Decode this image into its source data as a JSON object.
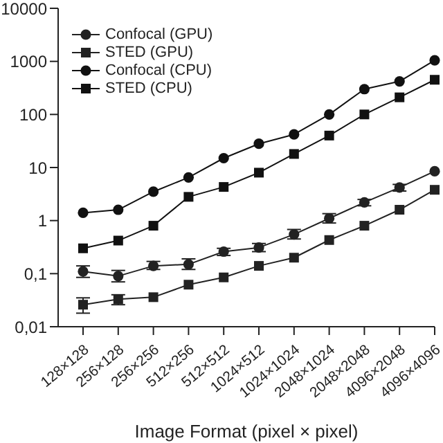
{
  "chart_data": {
    "type": "line",
    "xlabel": "Image Format (pixel × pixel)",
    "categories": [
      "128×128",
      "256×128",
      "256×256",
      "512×256",
      "512×512",
      "1024×512",
      "1024×1024",
      "2048×1024",
      "2048×2048",
      "4096×2048",
      "4096×4096"
    ],
    "series": [
      {
        "name": "Confocal (GPU)",
        "color": "#222222",
        "marker": "circle",
        "values": [
          0.11,
          0.09,
          0.14,
          0.15,
          0.26,
          0.31,
          0.55,
          1.1,
          2.2,
          4.2,
          8.5
        ],
        "errors": [
          [
            0.085,
            0.14
          ],
          [
            0.07,
            0.115
          ],
          [
            0.12,
            0.17
          ],
          [
            0.12,
            0.19
          ],
          [
            0.22,
            0.3
          ],
          [
            0.26,
            0.37
          ],
          [
            0.45,
            0.68
          ],
          [
            0.9,
            1.35
          ],
          [
            1.9,
            2.5
          ],
          [
            3.6,
            4.8
          ],
          null
        ]
      },
      {
        "name": "STED (GPU)",
        "color": "#222222",
        "marker": "square",
        "values": [
          0.026,
          0.033,
          0.036,
          0.062,
          0.085,
          0.14,
          0.2,
          0.43,
          0.8,
          1.6,
          3.8
        ],
        "errors": [
          [
            0.018,
            0.035
          ],
          [
            0.026,
            0.04
          ],
          null,
          null,
          null,
          null,
          null,
          null,
          null,
          null,
          null
        ]
      },
      {
        "name": "Confocal (CPU)",
        "color": "#111111",
        "marker": "circle",
        "values": [
          1.4,
          1.6,
          3.5,
          6.5,
          15,
          28,
          42,
          100,
          300,
          420,
          1050
        ]
      },
      {
        "name": "STED (CPU)",
        "color": "#111111",
        "marker": "square",
        "values": [
          0.3,
          0.42,
          0.8,
          2.8,
          4.3,
          8,
          18,
          40,
          100,
          210,
          450
        ]
      }
    ],
    "log": "y",
    "ylim": [
      0.01,
      10000
    ],
    "yticks": [
      {
        "value": 0.01,
        "label": "0,01"
      },
      {
        "value": 0.1,
        "label": "0,1"
      },
      1,
      10,
      100,
      1000,
      10000
    ],
    "grid": false,
    "legend": "top left",
    "line_style": "solid"
  }
}
